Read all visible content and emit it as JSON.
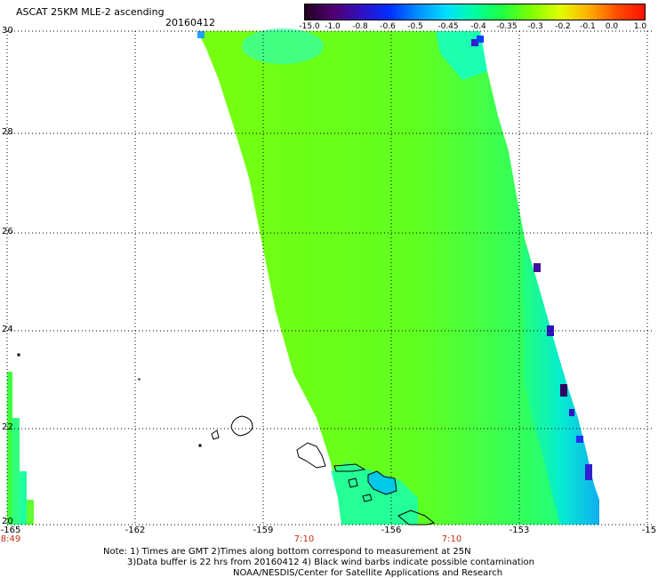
{
  "header": {
    "title": "ASCAT 25KM MLE-2 ascending",
    "date": "20160412"
  },
  "colorbar": {
    "labels": [
      "-15.0",
      "-1.0",
      "-0.8",
      "-0.6",
      "-0.5",
      "-0.45",
      "-0.4",
      "-0.35",
      "-0.3",
      "-0.2",
      "-0.1",
      "0.0",
      "1.0"
    ],
    "colors": [
      "#200020",
      "#500070",
      "#3010c0",
      "#0030ff",
      "#0090ff",
      "#00e0ff",
      "#00ffa0",
      "#20ff40",
      "#80ff00",
      "#e0ff00",
      "#ffb000",
      "#ff5000",
      "#ff1000"
    ]
  },
  "map": {
    "lat_labels": [
      "30",
      "28",
      "26",
      "24",
      "22",
      "20"
    ],
    "lon_labels": [
      "-165",
      "-162",
      "-159",
      "-156",
      "-153",
      "-15"
    ],
    "time_labels": [
      "8:49",
      "7:10",
      "7:10"
    ],
    "swath_color": "#80ff10",
    "low_color": "#00e8e0"
  },
  "notes": {
    "line1": "Note: 1) Times are GMT 2)Times along bottom correspond to measurement at 25N",
    "line2": "3)Data buffer is 22 hrs from 20160412 4) Black wind barbs indicate possible contamination",
    "line3": "NOAA/NESDIS/Center for Satellite Applications and Research"
  }
}
